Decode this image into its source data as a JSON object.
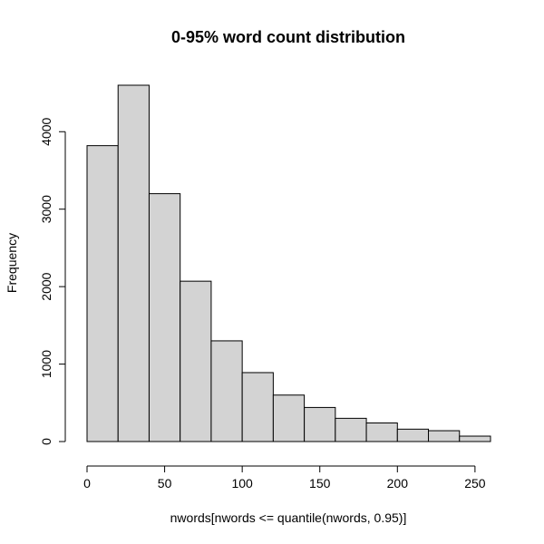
{
  "chart_data": {
    "type": "bar",
    "title": "0-95% word count distribution",
    "xlabel": "nwords[nwords <= quantile(nwords, 0.95)]",
    "ylabel": "Frequency",
    "bins": [
      {
        "start": 0,
        "end": 20,
        "value": 3820
      },
      {
        "start": 20,
        "end": 40,
        "value": 4600
      },
      {
        "start": 40,
        "end": 60,
        "value": 3200
      },
      {
        "start": 60,
        "end": 80,
        "value": 2070
      },
      {
        "start": 80,
        "end": 100,
        "value": 1300
      },
      {
        "start": 100,
        "end": 120,
        "value": 890
      },
      {
        "start": 120,
        "end": 140,
        "value": 600
      },
      {
        "start": 140,
        "end": 160,
        "value": 440
      },
      {
        "start": 160,
        "end": 180,
        "value": 300
      },
      {
        "start": 180,
        "end": 200,
        "value": 240
      },
      {
        "start": 200,
        "end": 220,
        "value": 160
      },
      {
        "start": 220,
        "end": 240,
        "value": 140
      },
      {
        "start": 240,
        "end": 260,
        "value": 70
      }
    ],
    "xticks": [
      0,
      50,
      100,
      150,
      200,
      250
    ],
    "yticks": [
      0,
      1000,
      2000,
      3000,
      4000
    ],
    "xlim": [
      0,
      260
    ],
    "ylim": [
      0,
      4600
    ],
    "grid": false,
    "bar_color": "#d3d3d3"
  }
}
